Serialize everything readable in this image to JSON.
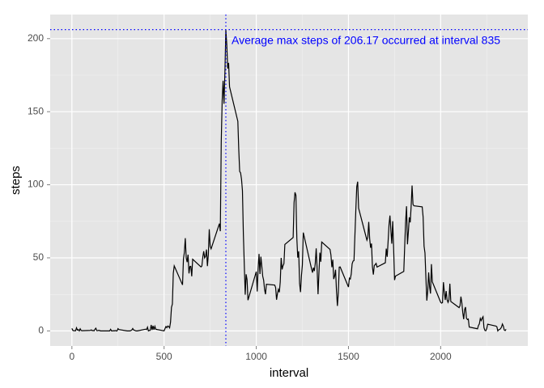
{
  "chart_data": {
    "type": "line",
    "xlabel": "interval",
    "ylabel": "steps",
    "color": "#000000",
    "grid": true,
    "xlim": [
      -117.75,
      2472.75
    ],
    "xticks": [
      0,
      500,
      1000,
      1500,
      2000
    ],
    "ylim": [
      -10.31,
      216.48
    ],
    "yticks": [
      0,
      50,
      100,
      150,
      200
    ],
    "annotation": {
      "text": "Average max steps of 206.17 occurred at interval 835",
      "x": 835,
      "y": 206.17,
      "color": "#0000ff"
    },
    "x": [
      0,
      5,
      10,
      15,
      20,
      25,
      30,
      35,
      40,
      45,
      50,
      55,
      100,
      105,
      110,
      115,
      120,
      125,
      130,
      135,
      140,
      145,
      150,
      155,
      200,
      205,
      210,
      215,
      220,
      225,
      230,
      235,
      240,
      245,
      250,
      255,
      300,
      305,
      310,
      315,
      320,
      325,
      330,
      335,
      340,
      345,
      350,
      355,
      400,
      405,
      410,
      415,
      420,
      425,
      430,
      435,
      440,
      445,
      450,
      455,
      500,
      505,
      510,
      515,
      520,
      525,
      530,
      535,
      540,
      545,
      550,
      555,
      600,
      605,
      610,
      615,
      620,
      625,
      630,
      635,
      640,
      645,
      650,
      655,
      700,
      705,
      710,
      715,
      720,
      725,
      730,
      735,
      740,
      745,
      750,
      755,
      800,
      805,
      810,
      815,
      820,
      825,
      830,
      835,
      840,
      845,
      850,
      855,
      900,
      905,
      910,
      915,
      920,
      925,
      930,
      935,
      940,
      945,
      950,
      955,
      1000,
      1005,
      1010,
      1015,
      1020,
      1025,
      1030,
      1035,
      1040,
      1045,
      1050,
      1055,
      1100,
      1105,
      1110,
      1115,
      1120,
      1125,
      1130,
      1135,
      1140,
      1145,
      1150,
      1155,
      1200,
      1205,
      1210,
      1215,
      1220,
      1225,
      1230,
      1235,
      1240,
      1245,
      1250,
      1255,
      1300,
      1305,
      1310,
      1315,
      1320,
      1325,
      1330,
      1335,
      1340,
      1345,
      1350,
      1355,
      1400,
      1405,
      1410,
      1415,
      1420,
      1425,
      1430,
      1435,
      1440,
      1445,
      1450,
      1455,
      1500,
      1505,
      1510,
      1515,
      1520,
      1525,
      1530,
      1535,
      1540,
      1545,
      1550,
      1555,
      1600,
      1605,
      1610,
      1615,
      1620,
      1625,
      1630,
      1635,
      1640,
      1645,
      1650,
      1655,
      1700,
      1705,
      1710,
      1715,
      1720,
      1725,
      1730,
      1735,
      1740,
      1745,
      1750,
      1755,
      1800,
      1805,
      1810,
      1815,
      1820,
      1825,
      1830,
      1835,
      1840,
      1845,
      1850,
      1855,
      1900,
      1905,
      1910,
      1915,
      1920,
      1925,
      1930,
      1935,
      1940,
      1945,
      1950,
      1955,
      2000,
      2005,
      2010,
      2015,
      2020,
      2025,
      2030,
      2035,
      2040,
      2045,
      2050,
      2055,
      2100,
      2105,
      2110,
      2115,
      2120,
      2125,
      2130,
      2135,
      2140,
      2145,
      2150,
      2155,
      2200,
      2205,
      2210,
      2215,
      2220,
      2225,
      2230,
      2235,
      2240,
      2245,
      2250,
      2255,
      2300,
      2305,
      2310,
      2315,
      2320,
      2325,
      2330,
      2335,
      2340,
      2345,
      2350,
      2355
    ],
    "values": [
      1.72,
      0.34,
      0.13,
      0.15,
      0.08,
      2.09,
      0.53,
      0.87,
      0,
      1.47,
      0.3,
      0.13,
      0.32,
      0.68,
      0.15,
      0.34,
      0,
      1.11,
      1.83,
      0.17,
      0.17,
      0.38,
      0.26,
      0,
      0,
      0,
      1.13,
      0,
      0,
      0.13,
      0,
      0.23,
      0,
      0,
      1.55,
      0.94,
      0,
      0,
      0,
      0,
      0.21,
      0.62,
      1.62,
      0.58,
      0.49,
      0.08,
      0,
      0,
      1.19,
      0.94,
      2.57,
      0,
      0.34,
      0.36,
      4.11,
      0.66,
      3.49,
      0.83,
      3.11,
      1.11,
      0,
      1.57,
      3.0,
      2.25,
      3.32,
      2.96,
      2.09,
      6.06,
      16.02,
      18.34,
      39.45,
      44.49,
      31.49,
      49.26,
      53.77,
      63.45,
      49.96,
      47.08,
      52.15,
      39.34,
      44.02,
      44.17,
      37.36,
      49.04,
      43.81,
      44.38,
      50.51,
      54.51,
      49.92,
      50.98,
      55.68,
      44.32,
      52.26,
      69.55,
      57.85,
      56.15,
      73.38,
      68.21,
      129.43,
      157.53,
      171.15,
      155.4,
      177.3,
      206.17,
      195.92,
      179.57,
      183.4,
      167.02,
      143.45,
      124.04,
      109.11,
      108.11,
      103.72,
      95.97,
      66.21,
      45.23,
      24.79,
      38.75,
      34.98,
      21.06,
      40.57,
      26.98,
      42.42,
      52.66,
      38.92,
      50.79,
      44.28,
      37.42,
      34.7,
      28.34,
      25.09,
      31.94,
      31.36,
      29.68,
      21.32,
      25.55,
      28.38,
      26.47,
      33.43,
      49.98,
      42.04,
      44.6,
      46.04,
      59.19,
      63.87,
      87.7,
      94.85,
      92.77,
      63.4,
      50.17,
      54.47,
      32.42,
      26.53,
      37.74,
      45.06,
      67.28,
      42.34,
      39.89,
      43.26,
      40.98,
      46.25,
      56.43,
      42.75,
      25.13,
      39.96,
      53.55,
      47.32,
      60.81,
      55.75,
      51.96,
      43.58,
      48.7,
      35.47,
      37.55,
      41.85,
      27.51,
      17.11,
      26.08,
      43.62,
      43.77,
      30.02,
      36.08,
      35.49,
      38.85,
      45.96,
      47.75,
      48.13,
      65.32,
      82.91,
      98.66,
      102.11,
      83.96,
      62.13,
      64.13,
      74.55,
      63.17,
      56.91,
      59.77,
      43.87,
      38.57,
      44.66,
      45.45,
      46.21,
      43.68,
      46.62,
      56.3,
      50.72,
      61.23,
      72.72,
      78.94,
      68.94,
      59.66,
      75.09,
      56.51,
      34.77,
      37.45,
      40.68,
      58.02,
      74.7,
      85.32,
      59.26,
      67.77,
      77.7,
      74.25,
      85.34,
      99.45,
      86.58,
      85.6,
      84.87,
      77.83,
      58.04,
      53.36,
      36.32,
      20.72,
      27.4,
      40.02,
      30.21,
      25.55,
      45.66,
      33.53,
      19.62,
      19.02,
      19.34,
      33.34,
      26.81,
      21.17,
      27.3,
      21.34,
      19.55,
      21.32,
      32.3,
      20.15,
      15.94,
      17.23,
      23.45,
      19.25,
      12.45,
      8.02,
      14.66,
      16.3,
      8.68,
      7.79,
      8.13,
      2.62,
      1.45,
      3.68,
      4.81,
      8.51,
      7.08,
      8.7,
      9.75,
      2.21,
      0.32,
      0.11,
      1.6,
      4.6,
      3.3,
      2.85,
      0,
      0.83,
      0.96,
      1.58,
      2.6,
      4.7,
      3.3,
      0.64,
      0.23,
      1.08
    ]
  }
}
